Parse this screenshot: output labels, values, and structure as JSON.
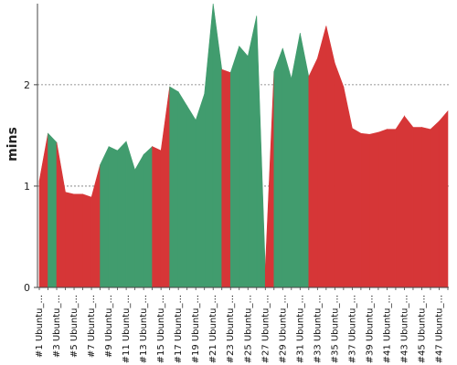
{
  "chart_data": {
    "type": "area",
    "title": "",
    "xlabel": "",
    "ylabel": "mins",
    "ylim": [
      0,
      2.8
    ],
    "yticks": [
      "0",
      "1",
      "2"
    ],
    "grid": true,
    "colors": {
      "green": "#419C6E",
      "red": "#D63637"
    },
    "x_tick_labels": [
      "#1 Ubuntu_...",
      "#3 Ubuntu_...",
      "#5 Ubuntu_...",
      "#7 Ubuntu_...",
      "#9 Ubuntu_...",
      "#11 Ubuntu_...",
      "#13 Ubuntu_...",
      "#15 Ubuntu_...",
      "#17 Ubuntu_...",
      "#19 Ubuntu_...",
      "#21 Ubuntu_...",
      "#23 Ubuntu_...",
      "#25 Ubuntu_...",
      "#27 Ubuntu_...",
      "#29 Ubuntu_...",
      "#31 Ubuntu_...",
      "#33 Ubuntu_...",
      "#35 Ubuntu_...",
      "#37 Ubuntu_...",
      "#39 Ubuntu_...",
      "#41 Ubuntu_...",
      "#43 Ubuntu_...",
      "#45 Ubuntu_...",
      "#47 Ubuntu_..."
    ],
    "x": [
      1,
      2,
      3,
      4,
      5,
      6,
      7,
      8,
      9,
      10,
      11,
      12,
      13,
      14,
      15,
      16,
      17,
      18,
      19,
      20,
      21,
      22,
      23,
      24,
      25,
      26,
      27,
      28,
      29,
      30,
      31,
      32,
      33,
      34,
      35,
      36,
      37,
      38,
      39,
      40,
      41,
      42,
      43,
      44,
      45,
      46,
      47,
      48
    ],
    "values": [
      1.05,
      1.52,
      1.43,
      0.94,
      0.92,
      0.92,
      0.89,
      1.21,
      1.39,
      1.35,
      1.44,
      1.16,
      1.31,
      1.39,
      1.35,
      1.98,
      1.93,
      1.79,
      1.65,
      1.91,
      2.8,
      2.15,
      2.12,
      2.38,
      2.28,
      2.68,
      0.18,
      2.13,
      2.36,
      2.06,
      2.51,
      2.08,
      2.26,
      2.58,
      2.21,
      1.98,
      1.57,
      1.52,
      1.51,
      1.53,
      1.56,
      1.56,
      1.69,
      1.58,
      1.58,
      1.56,
      1.64,
      1.74
    ],
    "status": [
      "red",
      "green",
      "red",
      "red",
      "red",
      "red",
      "red",
      "green",
      "green",
      "green",
      "green",
      "green",
      "green",
      "red",
      "red",
      "green",
      "green",
      "green",
      "green",
      "green",
      "green",
      "red",
      "green",
      "green",
      "green",
      "green",
      "red",
      "green",
      "green",
      "green",
      "green",
      "red",
      "red",
      "red",
      "red",
      "red",
      "red",
      "red",
      "red",
      "red",
      "red",
      "red",
      "red",
      "red",
      "red",
      "red",
      "red",
      "red"
    ]
  }
}
